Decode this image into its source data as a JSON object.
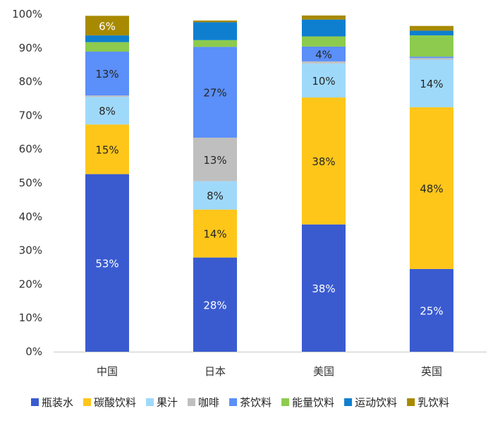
{
  "chart_data": {
    "type": "bar",
    "stacked": true,
    "categories": [
      "中国",
      "日本",
      "美国",
      "英国"
    ],
    "ylim": [
      0,
      100
    ],
    "yticks": [
      "0%",
      "10%",
      "20%",
      "30%",
      "40%",
      "50%",
      "60%",
      "70%",
      "80%",
      "90%",
      "100%"
    ],
    "grid": false,
    "legend_position": "bottom",
    "series": [
      {
        "name": "瓶装水",
        "color": "#3A5BD0",
        "values": [
          52.6,
          27.9,
          37.7,
          24.5
        ],
        "labels": [
          "53%",
          "28%",
          "38%",
          "25%"
        ]
      },
      {
        "name": "碳酸饮料",
        "color": "#FFC61A",
        "values": [
          14.7,
          14.2,
          37.6,
          47.9
        ],
        "labels": [
          "15%",
          "14%",
          "38%",
          "48%"
        ]
      },
      {
        "name": "果汁",
        "color": "#9FD9FA",
        "values": [
          8.2,
          8.4,
          10.1,
          14.1
        ],
        "labels": [
          "8%",
          "8%",
          "10%",
          "14%"
        ]
      },
      {
        "name": "咖啡",
        "color": "#BFBFBF",
        "values": [
          0.4,
          12.9,
          0.6,
          0.5
        ],
        "labels": [
          "",
          "13%",
          "",
          ""
        ]
      },
      {
        "name": "茶饮料",
        "color": "#5B8FF9",
        "values": [
          13.0,
          26.9,
          4.4,
          0.4
        ],
        "labels": [
          "13%",
          "27%",
          "4%",
          ""
        ]
      },
      {
        "name": "能量饮料",
        "color": "#8CCB4D",
        "values": [
          2.8,
          2.0,
          3.0,
          6.3
        ],
        "labels": [
          "",
          "",
          "",
          ""
        ]
      },
      {
        "name": "运动饮料",
        "color": "#0E7FCF",
        "values": [
          2.0,
          5.3,
          5.0,
          1.4
        ],
        "labels": [
          "",
          "",
          "",
          ""
        ]
      },
      {
        "name": "乳饮料",
        "color": "#A88A00",
        "values": [
          5.8,
          0.5,
          1.2,
          1.4
        ],
        "labels": [
          "6%",
          "",
          "",
          ""
        ]
      }
    ]
  }
}
